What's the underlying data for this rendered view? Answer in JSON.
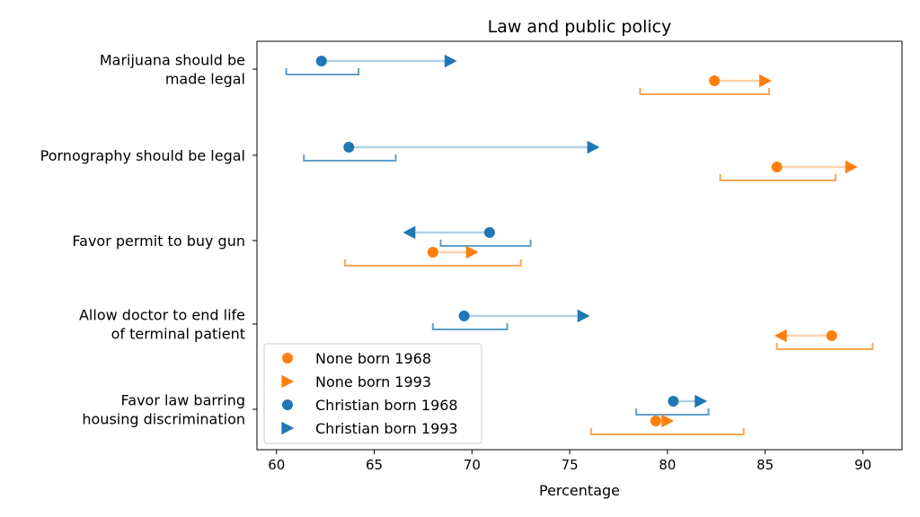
{
  "chart_data": {
    "type": "scatter",
    "title": "Law and public policy",
    "xlabel": "Percentage",
    "ylabel": "",
    "xlim": [
      59.0,
      92.0
    ],
    "xticks": [
      60,
      65,
      70,
      75,
      80,
      85,
      90
    ],
    "grid": false,
    "legend_position": "bottom-left",
    "categories": [
      "Marijuana should be made legal",
      "Pornography should be legal",
      "Favor permit to buy gun",
      "Allow doctor to end life of terminal patient",
      "Favor law barring housing discrimination"
    ],
    "category_label_lines": [
      [
        "Marijuana should be",
        "made legal"
      ],
      [
        "Pornography should be legal"
      ],
      [
        "Favor permit to buy gun"
      ],
      [
        "Allow doctor to end life",
        "of terminal patient"
      ],
      [
        "Favor law barring",
        "housing discrimination"
      ]
    ],
    "series": [
      {
        "name": "None born 1968",
        "group": "None",
        "marker": "circle",
        "values": [
          82.4,
          85.6,
          68.0,
          88.4,
          79.4
        ]
      },
      {
        "name": "None born 1993",
        "group": "None",
        "marker": "arrow",
        "values": [
          85.0,
          89.4,
          70.0,
          85.8,
          80.0
        ]
      },
      {
        "name": "Christian born 1968",
        "group": "Christian",
        "marker": "circle",
        "values": [
          62.3,
          63.7,
          70.9,
          69.6,
          80.3
        ]
      },
      {
        "name": "Christian born 1993",
        "group": "Christian",
        "marker": "arrow",
        "values": [
          68.9,
          76.2,
          66.8,
          75.7,
          81.7
        ]
      }
    ],
    "intervals": {
      "None": [
        [
          78.6,
          85.2
        ],
        [
          82.7,
          88.6
        ],
        [
          63.5,
          72.5
        ],
        [
          85.6,
          90.5
        ],
        [
          76.1,
          83.9
        ]
      ],
      "Christian": [
        [
          60.5,
          64.2
        ],
        [
          61.4,
          66.1
        ],
        [
          68.4,
          73.0
        ],
        [
          68.0,
          71.8
        ],
        [
          78.4,
          82.1
        ]
      ]
    },
    "colors": {
      "None": "#ff7f0e",
      "Christian": "#1f77b4"
    }
  }
}
